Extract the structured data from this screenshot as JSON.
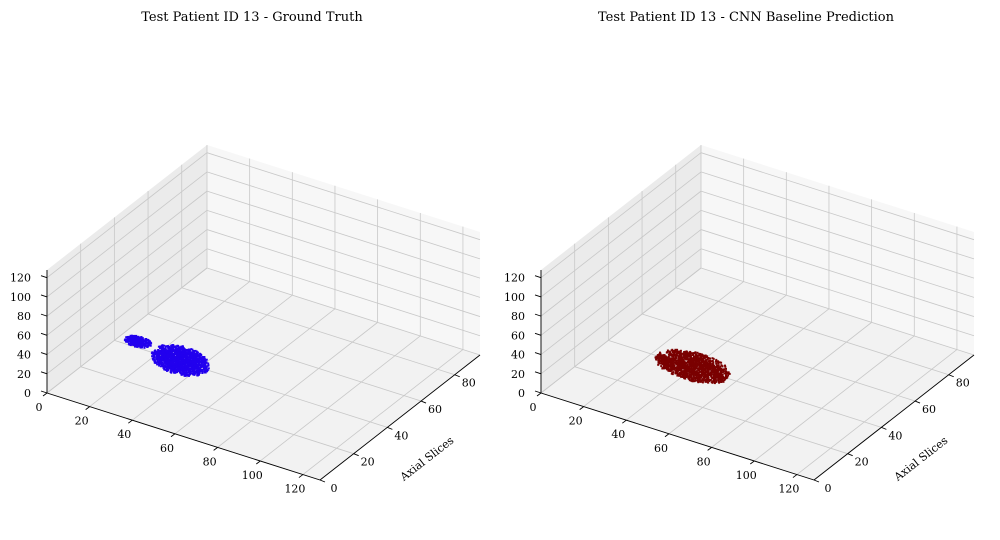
{
  "chart_data": [
    {
      "type": "scatter3d",
      "title": "Test Patient ID 13 - Ground Truth",
      "color": "#2200ee",
      "x_ticks": [
        "0",
        "20",
        "40",
        "60",
        "80",
        "100",
        "120"
      ],
      "y_ticks": [
        "0",
        "20",
        "40",
        "60",
        "80"
      ],
      "z_ticks": [
        "0",
        "20",
        "40",
        "60",
        "80",
        "100",
        "120"
      ],
      "xlabel": "",
      "ylabel": "Axial Slices",
      "zlabel": "",
      "xlim": [
        0,
        128
      ],
      "ylim": [
        0,
        95
      ],
      "zlim": [
        0,
        128
      ],
      "grid": true,
      "clusters": [
        {
          "name": "main",
          "x_range": [
            40,
            66
          ],
          "y_range": [
            6,
            18
          ],
          "z_range": [
            44,
            66
          ]
        },
        {
          "name": "small",
          "x_range": [
            20,
            32
          ],
          "y_range": [
            18,
            24
          ],
          "z_range": [
            40,
            46
          ]
        }
      ]
    },
    {
      "type": "scatter3d",
      "title": "Test Patient ID 13 - CNN Baseline Prediction",
      "color": "#7a0000",
      "x_ticks": [
        "0",
        "20",
        "40",
        "60",
        "80",
        "100",
        "120"
      ],
      "y_ticks": [
        "0",
        "20",
        "40",
        "60",
        "80"
      ],
      "z_ticks": [
        "0",
        "20",
        "40",
        "60",
        "80",
        "100",
        "120"
      ],
      "xlabel": "",
      "ylabel": "Axial Slices",
      "zlabel": "",
      "xlim": [
        0,
        128
      ],
      "ylim": [
        0,
        95
      ],
      "zlim": [
        0,
        128
      ],
      "grid": true,
      "clusters": [
        {
          "name": "main",
          "x_range": [
            44,
            78
          ],
          "y_range": [
            6,
            20
          ],
          "z_range": [
            44,
            62
          ]
        }
      ]
    }
  ]
}
